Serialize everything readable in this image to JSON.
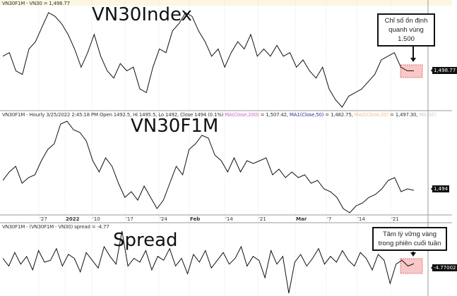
{
  "panels": {
    "top": {
      "header": "VN30F1M - VN30 = 1,498.77",
      "title": "VN30Index",
      "last_label": "1,498.77"
    },
    "middle": {
      "header_main": "VN30F1M - Hourly 3/25/2022 2:45:18 PM Open 1492.5, Hi 1495.5, Lo 1492, Close 1494 (0.1%) ",
      "ma": "MA(Close,200)",
      "ma_val": " = 1,507.42, ",
      "ma1": "MA1(Close,50)",
      "ma1_val": " = 1,482.75, ",
      "ma2": "MA2(Close,20)",
      "ma2_val": " = 1,497.30, ",
      "ma3": "MA3(Cl",
      "title": "VN30F1M",
      "last_label": "1,494"
    },
    "bottom": {
      "header": "VN30F1M - (VN30F1M - VN30) spread = -4.77",
      "title": "Spread",
      "last_label": "-4.77002"
    }
  },
  "annotations": {
    "top": "Chỉ số ổn định quanh vùng 1.500",
    "bottom": "Tâm lý vững vàng trong phiên cuối tuần"
  },
  "colors": {
    "line": "#111111",
    "highlight": "#f8c8c8",
    "ma": "#cc66cc",
    "ma1": "#333399",
    "ma2": "#e8c090",
    "ma3": "#cccccc"
  },
  "chart_data": [
    {
      "type": "line",
      "series": [
        {
          "name": "VN30",
          "values": [
            1519,
            1524,
            1499,
            1494,
            1529,
            1539,
            1559,
            1579,
            1574,
            1564,
            1549,
            1529,
            1504,
            1524,
            1549,
            1519,
            1499,
            1489,
            1509,
            1499,
            1504,
            1474,
            1469,
            1504,
            1529,
            1524,
            1554,
            1564,
            1579,
            1574,
            1554,
            1539,
            1519,
            1529,
            1504,
            1524,
            1539,
            1529,
            1549,
            1519,
            1529,
            1519,
            1534,
            1519,
            1524,
            1504,
            1514,
            1499,
            1489,
            1504,
            1474,
            1459,
            1449,
            1464,
            1469,
            1474,
            1484,
            1494,
            1514,
            1519,
            1524,
            1504,
            1499,
            1499
          ]
        }
      ],
      "last": 1498.77
    },
    {
      "type": "line",
      "series": [
        {
          "name": "VN30F1M",
          "values": [
            1508,
            1520,
            1528,
            1504,
            1512,
            1516,
            1536,
            1552,
            1560,
            1588,
            1592,
            1580,
            1576,
            1564,
            1536,
            1520,
            1540,
            1528,
            1504,
            1484,
            1492,
            1480,
            1500,
            1484,
            1468,
            1480,
            1504,
            1528,
            1516,
            1552,
            1560,
            1572,
            1568,
            1544,
            1536,
            1520,
            1540,
            1520,
            1536,
            1532,
            1536,
            1540,
            1516,
            1524,
            1512,
            1520,
            1512,
            1516,
            1504,
            1508,
            1496,
            1492,
            1484,
            1468,
            1462,
            1472,
            1476,
            1484,
            1488,
            1496,
            1508,
            1512,
            1492,
            1496,
            1494
          ]
        }
      ],
      "last": 1494
    },
    {
      "type": "line",
      "series": [
        {
          "name": "spread",
          "values": [
            -2,
            -6,
            1,
            -5,
            -1,
            -8,
            2,
            -4,
            -3,
            3,
            -6,
            0,
            -2,
            -9,
            1,
            -3,
            -7,
            4,
            -1,
            -5,
            12,
            -6,
            -2,
            -4,
            2,
            -8,
            -1,
            -3,
            3,
            -6,
            -2,
            -10,
            0,
            -4,
            2,
            -7,
            -3,
            1,
            -5,
            -2,
            4,
            -6,
            -1,
            -3,
            -12,
            2,
            -5,
            -1,
            -20,
            -4,
            0,
            -6,
            -2,
            3,
            -5,
            -1,
            -4,
            2,
            -3,
            -6,
            1,
            -2,
            -8,
            0,
            -3,
            -15,
            -5,
            -3,
            -6,
            -4.77
          ]
        }
      ],
      "last": -4.77
    }
  ],
  "x_ticks": [
    {
      "label": "'27",
      "bold": false
    },
    {
      "label": "2022",
      "bold": true
    },
    {
      "label": "'10",
      "bold": false
    },
    {
      "label": "'17",
      "bold": false
    },
    {
      "label": "'24",
      "bold": false
    },
    {
      "label": "Feb",
      "bold": true
    },
    {
      "label": "'14",
      "bold": false
    },
    {
      "label": "'21",
      "bold": false
    },
    {
      "label": "Mar",
      "bold": true
    },
    {
      "label": "'7",
      "bold": false
    },
    {
      "label": "'14",
      "bold": false
    },
    {
      "label": "'21",
      "bold": false
    }
  ]
}
